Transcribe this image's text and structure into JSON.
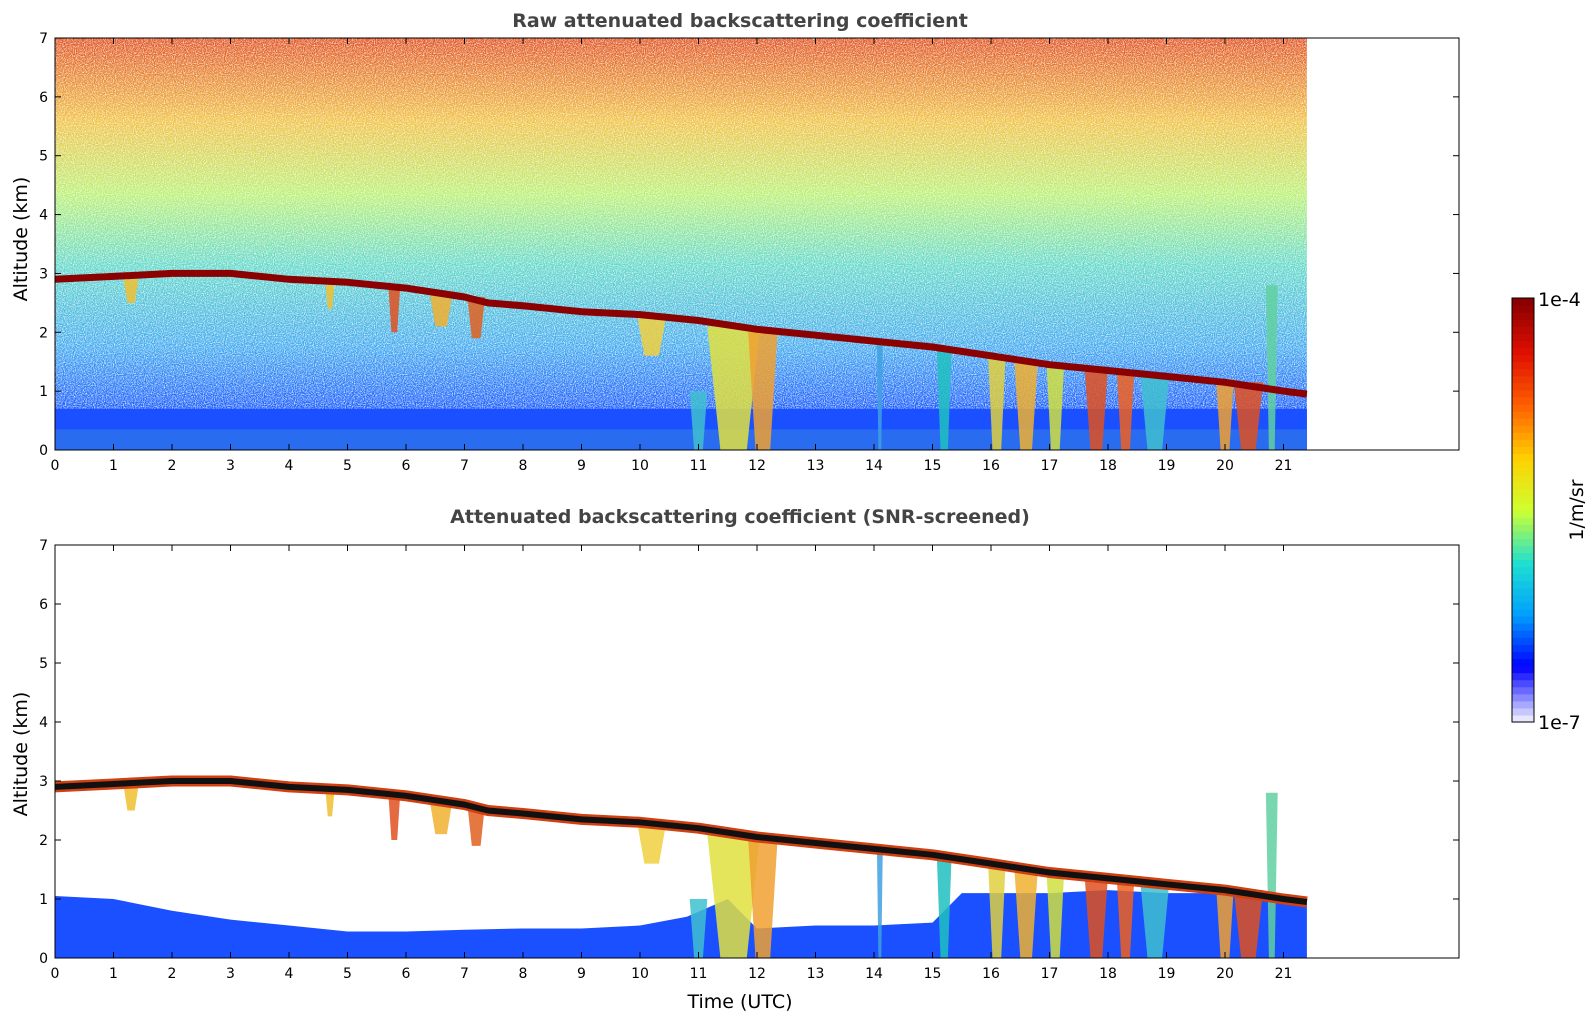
{
  "chart_data": [
    {
      "type": "heatmap",
      "title": "Raw attenuated backscattering coefficient",
      "xlabel": "",
      "ylabel": "Altitude (km)",
      "xlim": [
        0,
        24
      ],
      "ylim": [
        0,
        7
      ],
      "x_ticks": [
        "0",
        "1",
        "2",
        "3",
        "4",
        "5",
        "6",
        "7",
        "8",
        "9",
        "10",
        "11",
        "12",
        "13",
        "14",
        "15",
        "16",
        "17",
        "18",
        "19",
        "20",
        "21"
      ],
      "y_ticks": [
        "0",
        "1",
        "2",
        "3",
        "4",
        "5",
        "6",
        "7"
      ],
      "data_end_time": 21.4,
      "screening": "none",
      "cloud_base_km": [
        [
          0,
          2.9
        ],
        [
          1,
          2.95
        ],
        [
          2,
          3.0
        ],
        [
          3,
          3.0
        ],
        [
          4,
          2.9
        ],
        [
          5,
          2.85
        ],
        [
          6,
          2.75
        ],
        [
          7,
          2.6
        ],
        [
          7.4,
          2.5
        ],
        [
          8,
          2.45
        ],
        [
          9,
          2.35
        ],
        [
          10,
          2.3
        ],
        [
          11,
          2.2
        ],
        [
          12,
          2.05
        ],
        [
          13,
          1.95
        ],
        [
          14,
          1.85
        ],
        [
          15,
          1.75
        ],
        [
          16,
          1.6
        ],
        [
          17,
          1.45
        ],
        [
          18,
          1.35
        ],
        [
          19,
          1.25
        ],
        [
          20,
          1.15
        ],
        [
          21,
          1.0
        ],
        [
          21.4,
          0.95
        ]
      ]
    },
    {
      "type": "heatmap",
      "title": "Attenuated backscattering coefficient (SNR-screened)",
      "xlabel": "Time (UTC)",
      "ylabel": "Altitude (km)",
      "xlim": [
        0,
        24
      ],
      "ylim": [
        0,
        7
      ],
      "x_ticks": [
        "0",
        "1",
        "2",
        "3",
        "4",
        "5",
        "6",
        "7",
        "8",
        "9",
        "10",
        "11",
        "12",
        "13",
        "14",
        "15",
        "16",
        "17",
        "18",
        "19",
        "20",
        "21"
      ],
      "y_ticks": [
        "0",
        "1",
        "2",
        "3",
        "4",
        "5",
        "6",
        "7"
      ],
      "data_end_time": 21.4,
      "screening": "SNR",
      "cloud_base_km": [
        [
          0,
          2.9
        ],
        [
          1,
          2.95
        ],
        [
          2,
          3.0
        ],
        [
          3,
          3.0
        ],
        [
          4,
          2.9
        ],
        [
          5,
          2.85
        ],
        [
          6,
          2.75
        ],
        [
          7,
          2.6
        ],
        [
          7.4,
          2.5
        ],
        [
          8,
          2.45
        ],
        [
          9,
          2.35
        ],
        [
          10,
          2.3
        ],
        [
          11,
          2.2
        ],
        [
          12,
          2.05
        ],
        [
          13,
          1.95
        ],
        [
          14,
          1.85
        ],
        [
          15,
          1.75
        ],
        [
          16,
          1.6
        ],
        [
          17,
          1.45
        ],
        [
          18,
          1.35
        ],
        [
          19,
          1.25
        ],
        [
          20,
          1.15
        ],
        [
          21,
          1.0
        ],
        [
          21.4,
          0.95
        ]
      ]
    }
  ],
  "colorbar": {
    "label": "1/m/sr",
    "max_label": "1e-4",
    "min_label": "1e-7",
    "scale": "log",
    "colors": [
      "#e6e6ff",
      "#0000ff",
      "#00a0ff",
      "#20e0d0",
      "#d0ff30",
      "#ffd000",
      "#ff6000",
      "#e01000",
      "#8b0000"
    ]
  }
}
